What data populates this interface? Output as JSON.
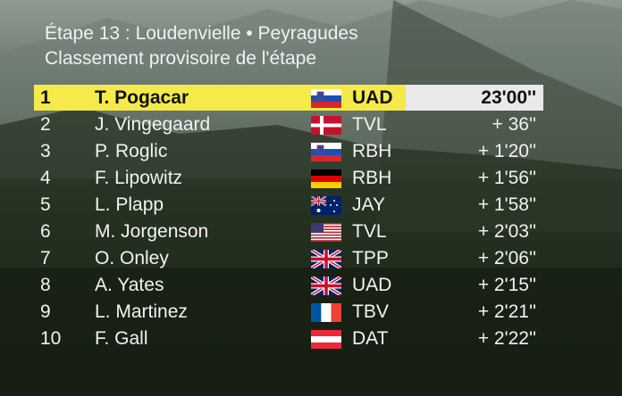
{
  "header": {
    "stage_title": "Étape 13 : Loudenvielle • Peyragudes",
    "subtitle": "Classement provisoire de l'étape"
  },
  "rows": [
    {
      "rank": "1",
      "rider": "T. Pogacar",
      "flag": "slovenia-flag",
      "team": "UAD",
      "time": "23'00''"
    },
    {
      "rank": "2",
      "rider": "J. Vingegaard",
      "flag": "denmark-flag",
      "team": "TVL",
      "time": "+ 36''"
    },
    {
      "rank": "3",
      "rider": "P. Roglic",
      "flag": "slovenia-flag",
      "team": "RBH",
      "time": "+ 1'20''"
    },
    {
      "rank": "4",
      "rider": "F. Lipowitz",
      "flag": "germany-flag",
      "team": "RBH",
      "time": "+ 1'56''"
    },
    {
      "rank": "5",
      "rider": "L. Plapp",
      "flag": "australia-flag",
      "team": "JAY",
      "time": "+ 1'58''"
    },
    {
      "rank": "6",
      "rider": "M. Jorgenson",
      "flag": "usa-flag",
      "team": "TVL",
      "time": "+ 2'03''"
    },
    {
      "rank": "7",
      "rider": "O. Onley",
      "flag": "united-kingdom-flag",
      "team": "TPP",
      "time": "+ 2'06''"
    },
    {
      "rank": "8",
      "rider": "A. Yates",
      "flag": "united-kingdom-flag",
      "team": "UAD",
      "time": "+ 2'15''"
    },
    {
      "rank": "9",
      "rider": "L. Martinez",
      "flag": "france-flag",
      "team": "TBV",
      "time": "+ 2'21''"
    },
    {
      "rank": "10",
      "rider": "F. Gall",
      "flag": "austria-flag",
      "team": "DAT",
      "time": "+ 2'22''"
    }
  ],
  "colors": {
    "leader_band": "#f5ea4a",
    "leader_time_band": "#e9e9e9",
    "text_light": "#f2f2f2"
  }
}
